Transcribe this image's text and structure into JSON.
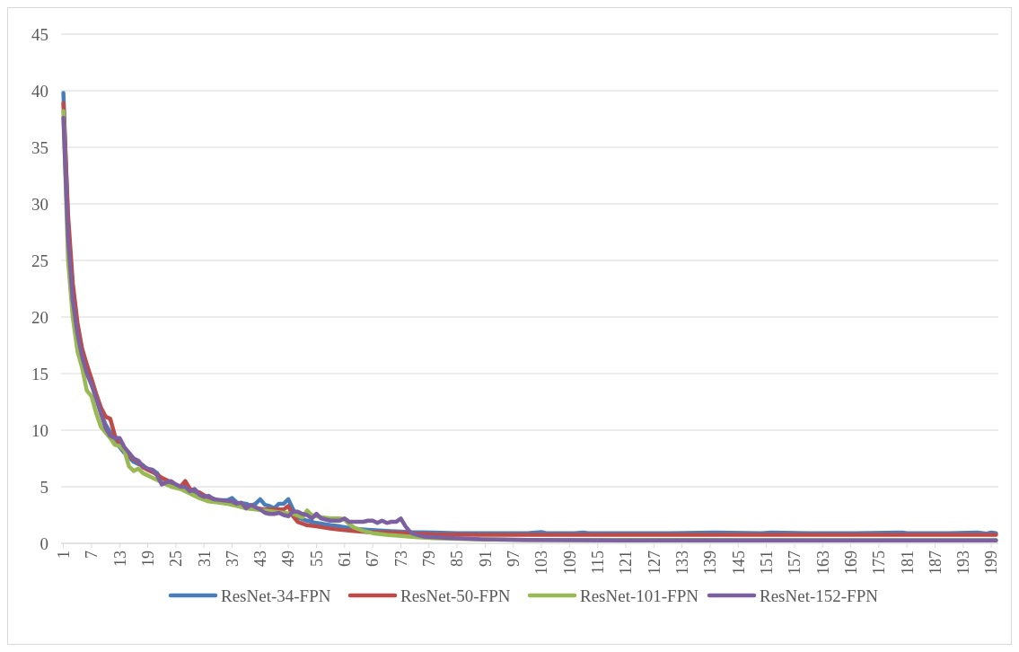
{
  "chart_data": {
    "type": "line",
    "xlim": [
      0.5,
      200.5
    ],
    "xticks": [
      1,
      7,
      13,
      19,
      25,
      31,
      37,
      43,
      49,
      55,
      61,
      67,
      73,
      79,
      85,
      91,
      97,
      103,
      109,
      115,
      121,
      127,
      133,
      139,
      145,
      151,
      157,
      163,
      169,
      175,
      181,
      187,
      193,
      199
    ],
    "ylim": [
      0,
      45
    ],
    "yticks": [
      0,
      5,
      10,
      15,
      20,
      25,
      30,
      35,
      40,
      45
    ],
    "grid": "y",
    "legend": "bottom",
    "marker": "none",
    "line_style": "solid",
    "series": [
      {
        "name": "ResNet-34-FPN",
        "color": "#4a7ebb",
        "x": [
          1,
          2,
          3,
          4,
          5,
          6,
          7,
          8,
          9,
          10,
          11,
          12,
          13,
          14,
          15,
          16,
          17,
          18,
          19,
          20,
          21,
          22,
          24,
          26,
          28,
          30,
          32,
          34,
          36,
          37,
          38,
          40,
          41,
          42,
          43,
          44,
          45,
          46,
          47,
          48,
          49,
          50,
          51,
          53,
          55,
          58,
          60,
          63,
          66,
          70,
          75,
          80,
          85,
          90,
          100,
          103,
          104,
          110,
          112,
          113,
          120,
          130,
          140,
          150,
          152,
          160,
          170,
          180,
          181,
          190,
          196,
          198,
          199,
          200
        ],
        "values": [
          39.8,
          28,
          22.5,
          19,
          17,
          15.5,
          14.5,
          13,
          11.5,
          10.5,
          9.8,
          9,
          8.5,
          8,
          7.6,
          7.2,
          7,
          6.9,
          6.5,
          6.5,
          6.2,
          5.6,
          5.3,
          5,
          4.6,
          4.3,
          4.1,
          3.8,
          3.8,
          4,
          3.6,
          3.5,
          3.3,
          3.5,
          3.9,
          3.4,
          3.3,
          3.1,
          3.5,
          3.5,
          3.9,
          3,
          2.3,
          2,
          1.8,
          1.6,
          1.5,
          1.3,
          1.2,
          1.1,
          1,
          0.95,
          0.9,
          0.9,
          0.9,
          1,
          0.9,
          0.9,
          0.95,
          0.9,
          0.9,
          0.9,
          0.95,
          0.9,
          0.95,
          0.9,
          0.9,
          0.95,
          0.9,
          0.9,
          0.95,
          0.85,
          0.95,
          0.9
        ]
      },
      {
        "name": "ResNet-50-FPN",
        "color": "#be4b48",
        "x": [
          1,
          2,
          3,
          4,
          5,
          6,
          7,
          8,
          9,
          10,
          11,
          12,
          13,
          14,
          15,
          16,
          17,
          18,
          19,
          20,
          22,
          24,
          26,
          27,
          28,
          30,
          32,
          34,
          36,
          38,
          40,
          42,
          44,
          46,
          48,
          49,
          50,
          51,
          53,
          55,
          58,
          60,
          63,
          66,
          70,
          75,
          80,
          90,
          120,
          160,
          200
        ],
        "values": [
          38.9,
          29,
          23,
          19.5,
          17.2,
          15.8,
          14.5,
          13.2,
          12,
          11.2,
          11,
          9.5,
          8.8,
          8.2,
          7.8,
          7.4,
          7.2,
          6.7,
          6.5,
          6.3,
          5.8,
          5.4,
          5,
          5.5,
          4.8,
          4.5,
          4,
          3.8,
          3.6,
          3.4,
          3.2,
          3.1,
          3,
          3,
          3,
          3.3,
          2.4,
          1.9,
          1.6,
          1.5,
          1.3,
          1.2,
          1.1,
          1,
          0.95,
          0.9,
          0.8,
          0.75,
          0.75,
          0.75,
          0.75
        ]
      },
      {
        "name": "ResNet-101-FPN",
        "color": "#98b954",
        "x": [
          1,
          2,
          3,
          4,
          5,
          6,
          7,
          8,
          9,
          10,
          11,
          12,
          13,
          14,
          15,
          16,
          17,
          18,
          19,
          20,
          22,
          24,
          26,
          28,
          30,
          32,
          34,
          36,
          38,
          40,
          42,
          44,
          46,
          48,
          50,
          52,
          53,
          54,
          56,
          58,
          60,
          61,
          62,
          63,
          65,
          67,
          70,
          73,
          76,
          80,
          90,
          100,
          200
        ],
        "values": [
          38.2,
          25,
          20,
          17,
          15.5,
          13.5,
          13,
          11.5,
          10.3,
          9.8,
          9.3,
          8.7,
          8.6,
          8.2,
          6.8,
          6.4,
          6.6,
          6.2,
          6,
          5.8,
          5.4,
          5,
          4.8,
          4.4,
          4,
          3.7,
          3.6,
          3.5,
          3.3,
          3.1,
          3,
          2.9,
          2.8,
          2.7,
          2.6,
          2.3,
          2.9,
          2.5,
          2.3,
          2.2,
          2.2,
          2.1,
          1.7,
          1.4,
          1.1,
          0.9,
          0.75,
          0.65,
          0.55,
          0.45,
          0.35,
          0.3,
          0.28
        ]
      },
      {
        "name": "ResNet-152-FPN",
        "color": "#7d60a0",
        "x": [
          1,
          2,
          3,
          4,
          5,
          6,
          7,
          8,
          9,
          10,
          11,
          12,
          13,
          14,
          15,
          16,
          17,
          18,
          19,
          20,
          21,
          22,
          23,
          24,
          25,
          26,
          27,
          28,
          29,
          30,
          31,
          32,
          33,
          35,
          37,
          38,
          39,
          40,
          41,
          42,
          43,
          44,
          45,
          46,
          47,
          48,
          49,
          50,
          51,
          52,
          53,
          54,
          55,
          56,
          57,
          58,
          60,
          61,
          62,
          63,
          65,
          66,
          67,
          68,
          69,
          70,
          71,
          72,
          73,
          74,
          75,
          76,
          78,
          82,
          90,
          100,
          120,
          200
        ],
        "values": [
          37.6,
          27,
          21.5,
          18.5,
          16.5,
          15,
          14,
          12.8,
          11.5,
          10.2,
          9.5,
          9.3,
          9.3,
          8.5,
          8,
          7.5,
          7.3,
          6.8,
          6.6,
          6.5,
          6,
          5.2,
          5.4,
          5.5,
          5.2,
          5,
          5,
          4.6,
          4.8,
          4.3,
          4.1,
          4.2,
          3.9,
          3.8,
          3.7,
          3.5,
          3.6,
          3.1,
          3.4,
          3.2,
          3,
          2.7,
          2.6,
          2.6,
          2.7,
          2.5,
          2.4,
          2.8,
          2.8,
          2.6,
          2.5,
          2.2,
          2.6,
          2.2,
          2.1,
          2,
          2,
          2.2,
          1.9,
          1.9,
          1.9,
          2,
          2,
          1.8,
          2,
          1.8,
          1.9,
          1.9,
          2.2,
          1.5,
          1,
          0.8,
          0.6,
          0.5,
          0.35,
          0.3,
          0.25,
          0.25
        ]
      }
    ]
  }
}
